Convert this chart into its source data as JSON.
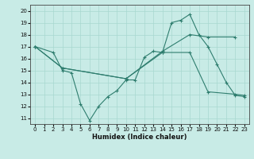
{
  "xlabel": "Humidex (Indice chaleur)",
  "bg_color": "#c8ebe6",
  "line_color": "#2e7d6e",
  "grid_color": "#a8d8d0",
  "xlim": [
    -0.5,
    23.5
  ],
  "ylim": [
    10.5,
    20.5
  ],
  "xticks": [
    0,
    1,
    2,
    3,
    4,
    5,
    6,
    7,
    8,
    9,
    10,
    11,
    12,
    13,
    14,
    15,
    16,
    17,
    18,
    19,
    20,
    21,
    22,
    23
  ],
  "yticks": [
    11,
    12,
    13,
    14,
    15,
    16,
    17,
    18,
    19,
    20
  ],
  "series": [
    {
      "x": [
        0,
        2,
        3,
        4,
        5,
        6,
        7,
        8,
        9,
        10,
        11,
        12,
        13,
        14,
        15,
        16,
        17,
        18,
        19,
        20,
        21,
        22,
        23
      ],
      "y": [
        17,
        16.5,
        15,
        14.8,
        12.2,
        10.8,
        12.0,
        12.8,
        13.3,
        14.2,
        14.2,
        16.1,
        16.6,
        16.5,
        19.0,
        19.2,
        19.7,
        18.0,
        17.0,
        15.5,
        14.0,
        12.9,
        12.8
      ]
    },
    {
      "x": [
        0,
        3,
        10,
        14,
        17,
        19,
        22
      ],
      "y": [
        17,
        15.2,
        14.3,
        16.6,
        18.0,
        17.8,
        17.8
      ]
    },
    {
      "x": [
        0,
        3,
        10,
        14,
        17,
        19,
        22,
        23
      ],
      "y": [
        17,
        15.2,
        14.3,
        16.5,
        16.5,
        13.2,
        13.0,
        12.9
      ]
    }
  ]
}
